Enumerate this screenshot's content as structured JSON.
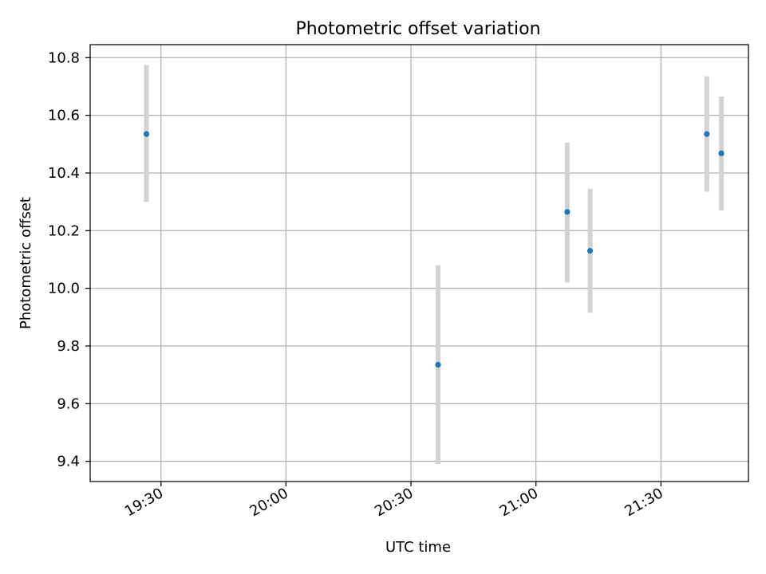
{
  "chart_data": {
    "type": "scatter",
    "title": "Photometric offset variation",
    "xlabel": "UTC time",
    "ylabel": "Photometric offset",
    "grid": true,
    "xlim_minutes": [
      1153,
      1311
    ],
    "ylim": [
      9.33,
      10.845
    ],
    "x_ticks": [
      {
        "label": "19:30",
        "minutes": 1170
      },
      {
        "label": "20:00",
        "minutes": 1200
      },
      {
        "label": "20:30",
        "minutes": 1230
      },
      {
        "label": "21:00",
        "minutes": 1260
      },
      {
        "label": "21:30",
        "minutes": 1290
      }
    ],
    "y_ticks": [
      {
        "label": "9.4",
        "value": 9.4
      },
      {
        "label": "9.6",
        "value": 9.6
      },
      {
        "label": "9.8",
        "value": 9.8
      },
      {
        "label": "10.0",
        "value": 10.0
      },
      {
        "label": "10.2",
        "value": 10.2
      },
      {
        "label": "10.4",
        "value": 10.4
      },
      {
        "label": "10.6",
        "value": 10.6
      },
      {
        "label": "10.8",
        "value": 10.8
      }
    ],
    "points": [
      {
        "time": "19:26",
        "minutes": 1166.5,
        "value": 10.535,
        "err_low": 10.3,
        "err_high": 10.775
      },
      {
        "time": "20:36",
        "minutes": 1236.5,
        "value": 9.735,
        "err_low": 9.39,
        "err_high": 10.08
      },
      {
        "time": "21:07",
        "minutes": 1267.5,
        "value": 10.265,
        "err_low": 10.02,
        "err_high": 10.505
      },
      {
        "time": "21:13",
        "minutes": 1273.0,
        "value": 10.13,
        "err_low": 9.915,
        "err_high": 10.345
      },
      {
        "time": "21:41",
        "minutes": 1301.0,
        "value": 10.535,
        "err_low": 10.335,
        "err_high": 10.735
      },
      {
        "time": "21:45",
        "minutes": 1304.5,
        "value": 10.468,
        "err_low": 10.27,
        "err_high": 10.665
      }
    ],
    "colors": {
      "marker": "#1f77b4",
      "errorbar": "#d3d3d3",
      "grid": "#b0b0b0",
      "axes": "#000000"
    }
  }
}
